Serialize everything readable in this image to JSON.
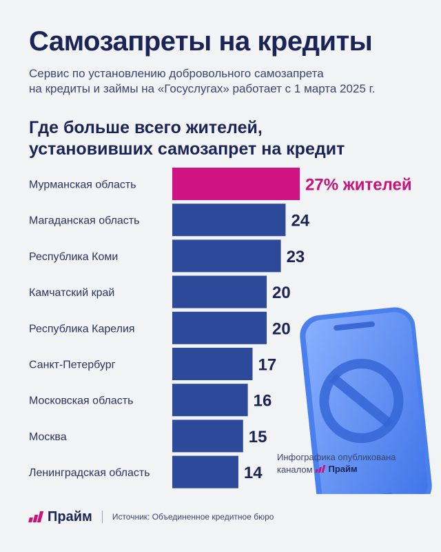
{
  "header": {
    "title": "Самозапреты на кредиты",
    "subtitle_line1": "Сервис по установлению добровольного самозапрета",
    "subtitle_line2": "на кредиты и займы на «Госуслугах» работает с 1 марта 2025 г."
  },
  "chart_data": {
    "type": "bar",
    "orientation": "horizontal",
    "title_line1": "Где больше всего жителей,",
    "title_line2": "установивших самозапрет на кредит",
    "categories": [
      "Мурманская область",
      "Магаданская область",
      "Республика Коми",
      "Камчатский край",
      "Республика Карелия",
      "Санкт-Петербург",
      "Московская область",
      "Москва",
      "Ленинградская область"
    ],
    "values": [
      27,
      24,
      23,
      20,
      20,
      17,
      16,
      15,
      14
    ],
    "value_labels": [
      "27% жителей",
      "24",
      "23",
      "20",
      "20",
      "17",
      "16",
      "15",
      "14"
    ],
    "unit": "%",
    "highlight_index": 0,
    "colors": {
      "bar": "#2d4a9a",
      "highlight": "#d01382",
      "label_highlight": "#c8137a",
      "label": "#1a2456"
    }
  },
  "footer": {
    "brand": "Прайм",
    "source": "Источник: Объединенное кредитное бюро"
  },
  "note": {
    "line1": "Инфографика опубликована",
    "line2": "каналом",
    "brand": "Прайм"
  },
  "illustration": {
    "icon": "phone-with-prohibition-icon",
    "color": "#5b8cf0"
  }
}
